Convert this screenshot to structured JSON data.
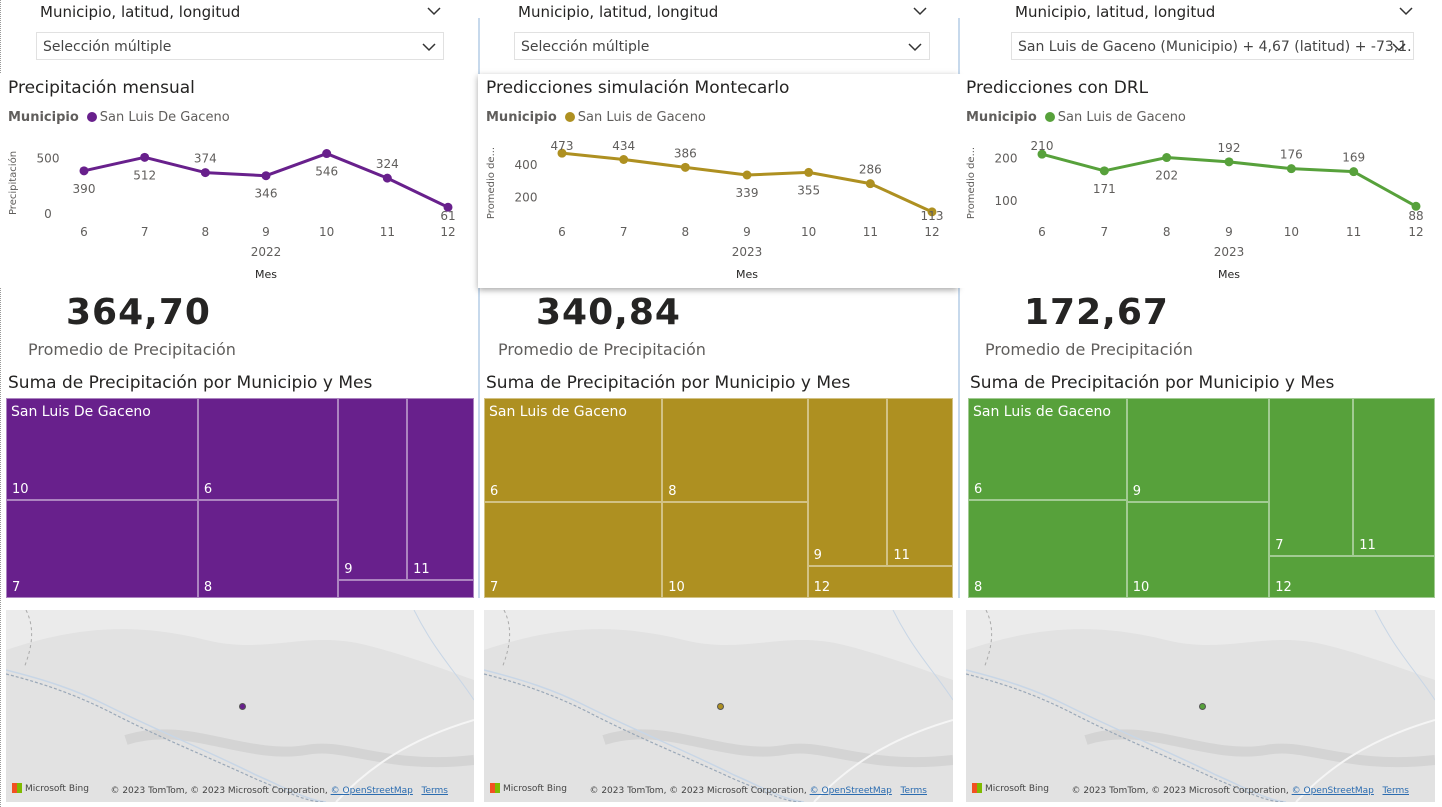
{
  "slicer_label": "Municipio, latitud, longitud",
  "columns": [
    {
      "dropdown_value": "Selección múltiple",
      "chart_title": "Precipitación mensual",
      "legend_field": "Municipio",
      "legend_series": "San Luis De Gaceno",
      "color": "#68208c",
      "y_axis_title": "Precipitación",
      "year": "2022",
      "kpi_value": "364,70",
      "kpi_label": "Promedio de Precipitación",
      "treemap_title": "Suma de Precipitación por Municipio y Mes",
      "treemap_name": "San Luis De Gaceno",
      "treemap_labels": [
        "10",
        "6",
        "7",
        "8",
        "9",
        "11"
      ],
      "x_axis_title": "Mes"
    },
    {
      "dropdown_value": "Selección múltiple",
      "chart_title": "Predicciones simulación Montecarlo",
      "legend_field": "Municipio",
      "legend_series": "San Luis de Gaceno",
      "color": "#ae9021",
      "y_axis_title": "Promedio de...",
      "year": "2023",
      "kpi_value": "340,84",
      "kpi_label": "Promedio de Precipitación",
      "treemap_title": "Suma de Precipitación por Municipio y Mes",
      "treemap_name": "San Luis de Gaceno",
      "treemap_labels": [
        "6",
        "8",
        "7",
        "10",
        "9",
        "11",
        "12"
      ],
      "x_axis_title": "Mes"
    },
    {
      "dropdown_value": "San Luis de Gaceno (Municipio) + 4,67 (latitud) + -73,1...",
      "chart_title": "Predicciones con DRL",
      "legend_field": "Municipio",
      "legend_series": "San Luis de Gaceno",
      "color": "#57a13b",
      "y_axis_title": "Promedio de...",
      "year": "2023",
      "kpi_value": "172,67",
      "kpi_label": "Promedio de Precipitación",
      "treemap_title": "Suma de Precipitación por Municipio y Mes",
      "treemap_name": "San Luis de Gaceno",
      "treemap_labels": [
        "6",
        "9",
        "8",
        "10",
        "7",
        "11",
        "12"
      ],
      "x_axis_title": "Mes"
    }
  ],
  "chart_data": [
    {
      "type": "line",
      "title": "Precipitación mensual",
      "xlabel": "Mes",
      "ylabel": "Precipitación",
      "x": [
        "6",
        "7",
        "8",
        "9",
        "10",
        "11",
        "12"
      ],
      "year": "2022",
      "series": [
        {
          "name": "San Luis De Gaceno",
          "values": [
            390,
            512,
            374,
            346,
            546,
            324,
            61
          ]
        }
      ],
      "y_ticks": [
        0,
        500
      ],
      "ylim": [
        0,
        560
      ]
    },
    {
      "type": "line",
      "title": "Predicciones simulación Montecarlo",
      "xlabel": "Mes",
      "ylabel": "Promedio de...",
      "x": [
        "6",
        "7",
        "8",
        "9",
        "10",
        "11",
        "12"
      ],
      "year": "2023",
      "series": [
        {
          "name": "San Luis de Gaceno",
          "values": [
            473,
            434,
            386,
            339,
            355,
            286,
            113
          ]
        }
      ],
      "y_ticks": [
        200,
        400
      ],
      "ylim": [
        100,
        480
      ]
    },
    {
      "type": "line",
      "title": "Predicciones con DRL",
      "xlabel": "Mes",
      "ylabel": "Promedio de...",
      "x": [
        "6",
        "7",
        "8",
        "9",
        "10",
        "11",
        "12"
      ],
      "year": "2023",
      "series": [
        {
          "name": "San Luis de Gaceno",
          "values": [
            210,
            171,
            202,
            192,
            176,
            169,
            88
          ]
        }
      ],
      "y_ticks": [
        100,
        200
      ],
      "ylim": [
        70,
        215
      ]
    }
  ],
  "map": {
    "provider": "Microsoft Bing",
    "attribution": "© 2023 TomTom, © 2023 Microsoft Corporation,",
    "osm_link": "© OpenStreetMap",
    "terms_link": "Terms"
  }
}
